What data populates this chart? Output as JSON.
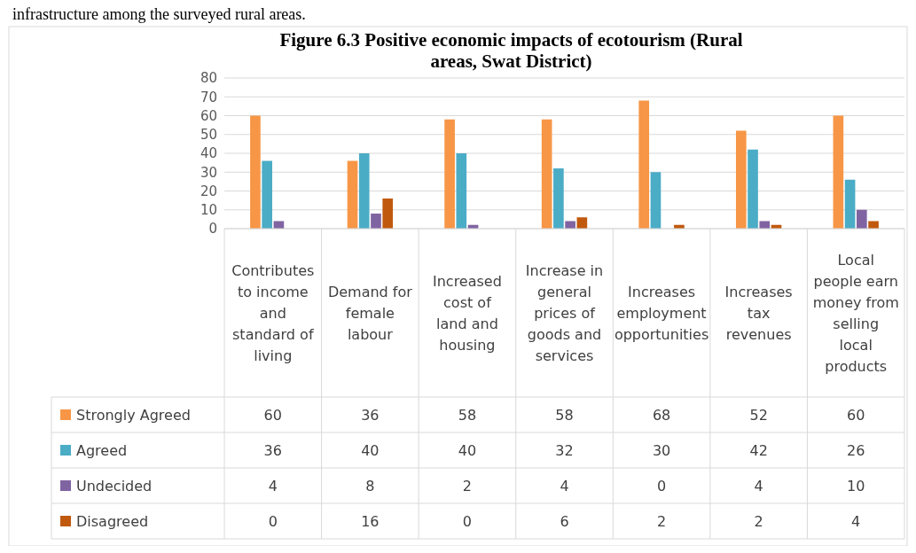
{
  "chart_data": {
    "type": "bar",
    "title": "Figure 6.3 Positive economic impacts of ecotourism (Rural areas, Swat District)",
    "annotations": [
      "infrastructure among the surveyed rural areas."
    ],
    "categories": [
      "Contributes to income and standard of living",
      "Demand for female labour",
      "Increased cost of land and housing",
      "Increase in general prices of goods and services",
      "Increases employment opportunities",
      "Increases tax revenues",
      "Local people earn money from selling local products"
    ],
    "series": [
      {
        "name": "Strongly Agreed",
        "color": "#f79646",
        "values": [
          60,
          36,
          58,
          58,
          68,
          52,
          60
        ]
      },
      {
        "name": "Agreed",
        "color": "#4bacc6",
        "values": [
          36,
          40,
          40,
          32,
          30,
          42,
          26
        ]
      },
      {
        "name": "Undecided",
        "color": "#8064a2",
        "values": [
          4,
          8,
          2,
          4,
          0,
          4,
          10
        ]
      },
      {
        "name": "Disagreed",
        "color": "#c0590e",
        "values": [
          0,
          16,
          0,
          6,
          2,
          2,
          4
        ]
      }
    ],
    "ylim": [
      0,
      80
    ],
    "yticks": [
      0,
      10,
      20,
      30,
      40,
      50,
      60,
      70,
      80
    ],
    "grid": "y",
    "legend": "bottom",
    "data_labels": true
  }
}
